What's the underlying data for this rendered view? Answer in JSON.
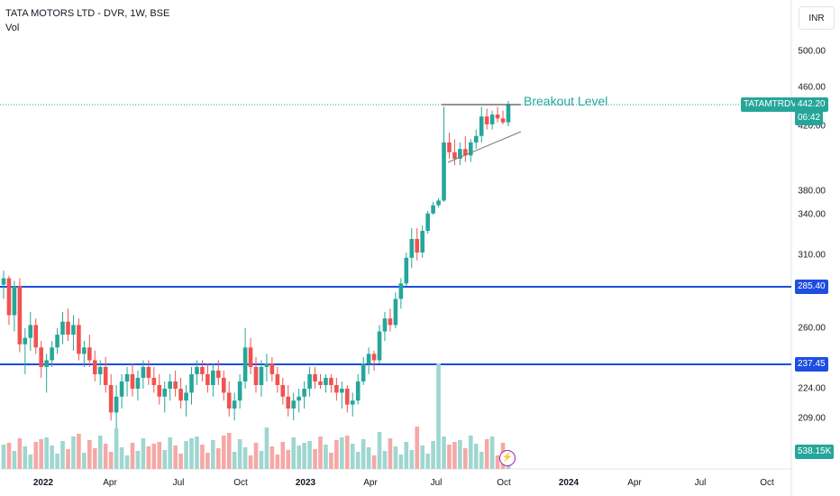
{
  "legend": {
    "title": "TATA MOTORS LTD - DVR, 1W, BSE",
    "sub": "Vol"
  },
  "currency": "INR",
  "axis_labels": [
    "500.00",
    "460.00",
    "420.00",
    "380.00",
    "340.00",
    "310.00",
    "285.40",
    "260.00",
    "237.45",
    "224.00",
    "209.00"
  ],
  "x_labels": [
    {
      "t": "2022",
      "bold": true
    },
    {
      "t": "Apr",
      "bold": false
    },
    {
      "t": "Jul",
      "bold": false
    },
    {
      "t": "Oct",
      "bold": false
    },
    {
      "t": "2023",
      "bold": true
    },
    {
      "t": "Apr",
      "bold": false
    },
    {
      "t": "Jul",
      "bold": false
    },
    {
      "t": "Oct",
      "bold": false
    },
    {
      "t": "2024",
      "bold": true
    },
    {
      "t": "Apr",
      "bold": false
    },
    {
      "t": "Jul",
      "bold": false
    },
    {
      "t": "Oct",
      "bold": false
    }
  ],
  "last_price": {
    "symbol": "TATAMTRDVR",
    "price": "442.20",
    "countdown": "06:42"
  },
  "level_labels": {
    "upper": "285.40",
    "lower": "237.45"
  },
  "volume_label": "538.15K",
  "annotation": "Breakout Level",
  "colors": {
    "up": "#26a69a",
    "down": "#ef5350",
    "vol_up": "#9fd6d0",
    "vol_down": "#f5a8a6",
    "line": "#1e4ee0",
    "bolt": "#9c27b0"
  },
  "chart_data": {
    "type": "candlestick",
    "symbol": "TATA MOTORS LTD - DVR",
    "interval": "1W",
    "exchange": "BSE",
    "y_ticks": [
      209,
      224,
      260,
      310,
      340,
      380,
      420,
      460,
      500
    ],
    "horizontal_levels": [
      285.4,
      237.45,
      442.2
    ],
    "last_price": 442.2,
    "candles_ohlc_approx": [
      [
        287,
        298,
        278,
        292
      ],
      [
        292,
        294,
        262,
        268
      ],
      [
        268,
        290,
        258,
        286
      ],
      [
        286,
        292,
        245,
        250
      ],
      [
        250,
        260,
        232,
        254
      ],
      [
        254,
        270,
        246,
        262
      ],
      [
        262,
        266,
        244,
        248
      ],
      [
        248,
        252,
        230,
        236
      ],
      [
        236,
        244,
        222,
        240
      ],
      [
        240,
        252,
        236,
        248
      ],
      [
        248,
        260,
        244,
        256
      ],
      [
        256,
        270,
        250,
        264
      ],
      [
        264,
        272,
        252,
        256
      ],
      [
        256,
        268,
        246,
        262
      ],
      [
        262,
        266,
        240,
        244
      ],
      [
        244,
        252,
        236,
        248
      ],
      [
        248,
        256,
        236,
        240
      ],
      [
        240,
        246,
        228,
        232
      ],
      [
        232,
        240,
        226,
        236
      ],
      [
        236,
        242,
        222,
        226
      ],
      [
        226,
        232,
        208,
        212
      ],
      [
        212,
        226,
        204,
        220
      ],
      [
        220,
        232,
        214,
        228
      ],
      [
        228,
        236,
        220,
        232
      ],
      [
        232,
        238,
        220,
        224
      ],
      [
        224,
        234,
        218,
        230
      ],
      [
        230,
        240,
        224,
        236
      ],
      [
        236,
        240,
        226,
        230
      ],
      [
        230,
        236,
        222,
        226
      ],
      [
        226,
        232,
        216,
        220
      ],
      [
        220,
        228,
        212,
        224
      ],
      [
        224,
        232,
        218,
        228
      ],
      [
        228,
        234,
        220,
        224
      ],
      [
        224,
        230,
        214,
        218
      ],
      [
        218,
        226,
        210,
        222
      ],
      [
        222,
        236,
        216,
        232
      ],
      [
        232,
        240,
        226,
        236
      ],
      [
        236,
        240,
        228,
        232
      ],
      [
        232,
        238,
        222,
        226
      ],
      [
        226,
        238,
        220,
        234
      ],
      [
        234,
        240,
        226,
        230
      ],
      [
        230,
        234,
        218,
        222
      ],
      [
        222,
        228,
        210,
        214
      ],
      [
        214,
        222,
        208,
        218
      ],
      [
        218,
        232,
        214,
        228
      ],
      [
        228,
        260,
        224,
        248
      ],
      [
        248,
        254,
        232,
        236
      ],
      [
        236,
        242,
        222,
        226
      ],
      [
        226,
        240,
        220,
        236
      ],
      [
        236,
        244,
        228,
        238
      ],
      [
        238,
        242,
        228,
        232
      ],
      [
        232,
        236,
        222,
        226
      ],
      [
        226,
        230,
        216,
        220
      ],
      [
        220,
        226,
        210,
        214
      ],
      [
        214,
        222,
        208,
        218
      ],
      [
        218,
        224,
        212,
        220
      ],
      [
        220,
        228,
        214,
        224
      ],
      [
        224,
        236,
        220,
        232
      ],
      [
        232,
        236,
        224,
        228
      ],
      [
        228,
        232,
        224,
        226
      ],
      [
        226,
        232,
        222,
        230
      ],
      [
        230,
        232,
        222,
        226
      ],
      [
        226,
        230,
        218,
        222
      ],
      [
        222,
        228,
        214,
        224
      ],
      [
        224,
        226,
        212,
        216
      ],
      [
        216,
        222,
        210,
        218
      ],
      [
        218,
        232,
        216,
        228
      ],
      [
        228,
        242,
        226,
        238
      ],
      [
        238,
        248,
        232,
        244
      ],
      [
        244,
        246,
        234,
        240
      ],
      [
        240,
        262,
        238,
        258
      ],
      [
        258,
        270,
        252,
        266
      ],
      [
        266,
        272,
        258,
        262
      ],
      [
        262,
        282,
        260,
        278
      ],
      [
        278,
        292,
        272,
        288
      ],
      [
        288,
        312,
        286,
        308
      ],
      [
        308,
        330,
        300,
        322
      ],
      [
        322,
        330,
        306,
        312
      ],
      [
        312,
        332,
        308,
        328
      ],
      [
        328,
        346,
        326,
        342
      ],
      [
        342,
        362,
        340,
        356
      ],
      [
        356,
        368,
        352,
        364
      ],
      [
        364,
        440,
        362,
        410
      ],
      [
        410,
        416,
        400,
        404
      ],
      [
        404,
        412,
        396,
        400
      ],
      [
        400,
        410,
        396,
        406
      ],
      [
        406,
        414,
        398,
        402
      ],
      [
        402,
        412,
        398,
        410
      ],
      [
        410,
        418,
        406,
        414
      ],
      [
        414,
        440,
        410,
        430
      ],
      [
        430,
        438,
        418,
        422
      ],
      [
        422,
        436,
        418,
        432
      ],
      [
        432,
        440,
        424,
        428
      ],
      [
        428,
        436,
        422,
        424
      ],
      [
        424,
        446,
        420,
        442
      ]
    ],
    "volume_last": "538.15K",
    "annotations": [
      {
        "text": "Breakout Level",
        "price": 442.2
      },
      {
        "type": "trendline",
        "from_price": 390,
        "to_price": 417
      }
    ]
  }
}
